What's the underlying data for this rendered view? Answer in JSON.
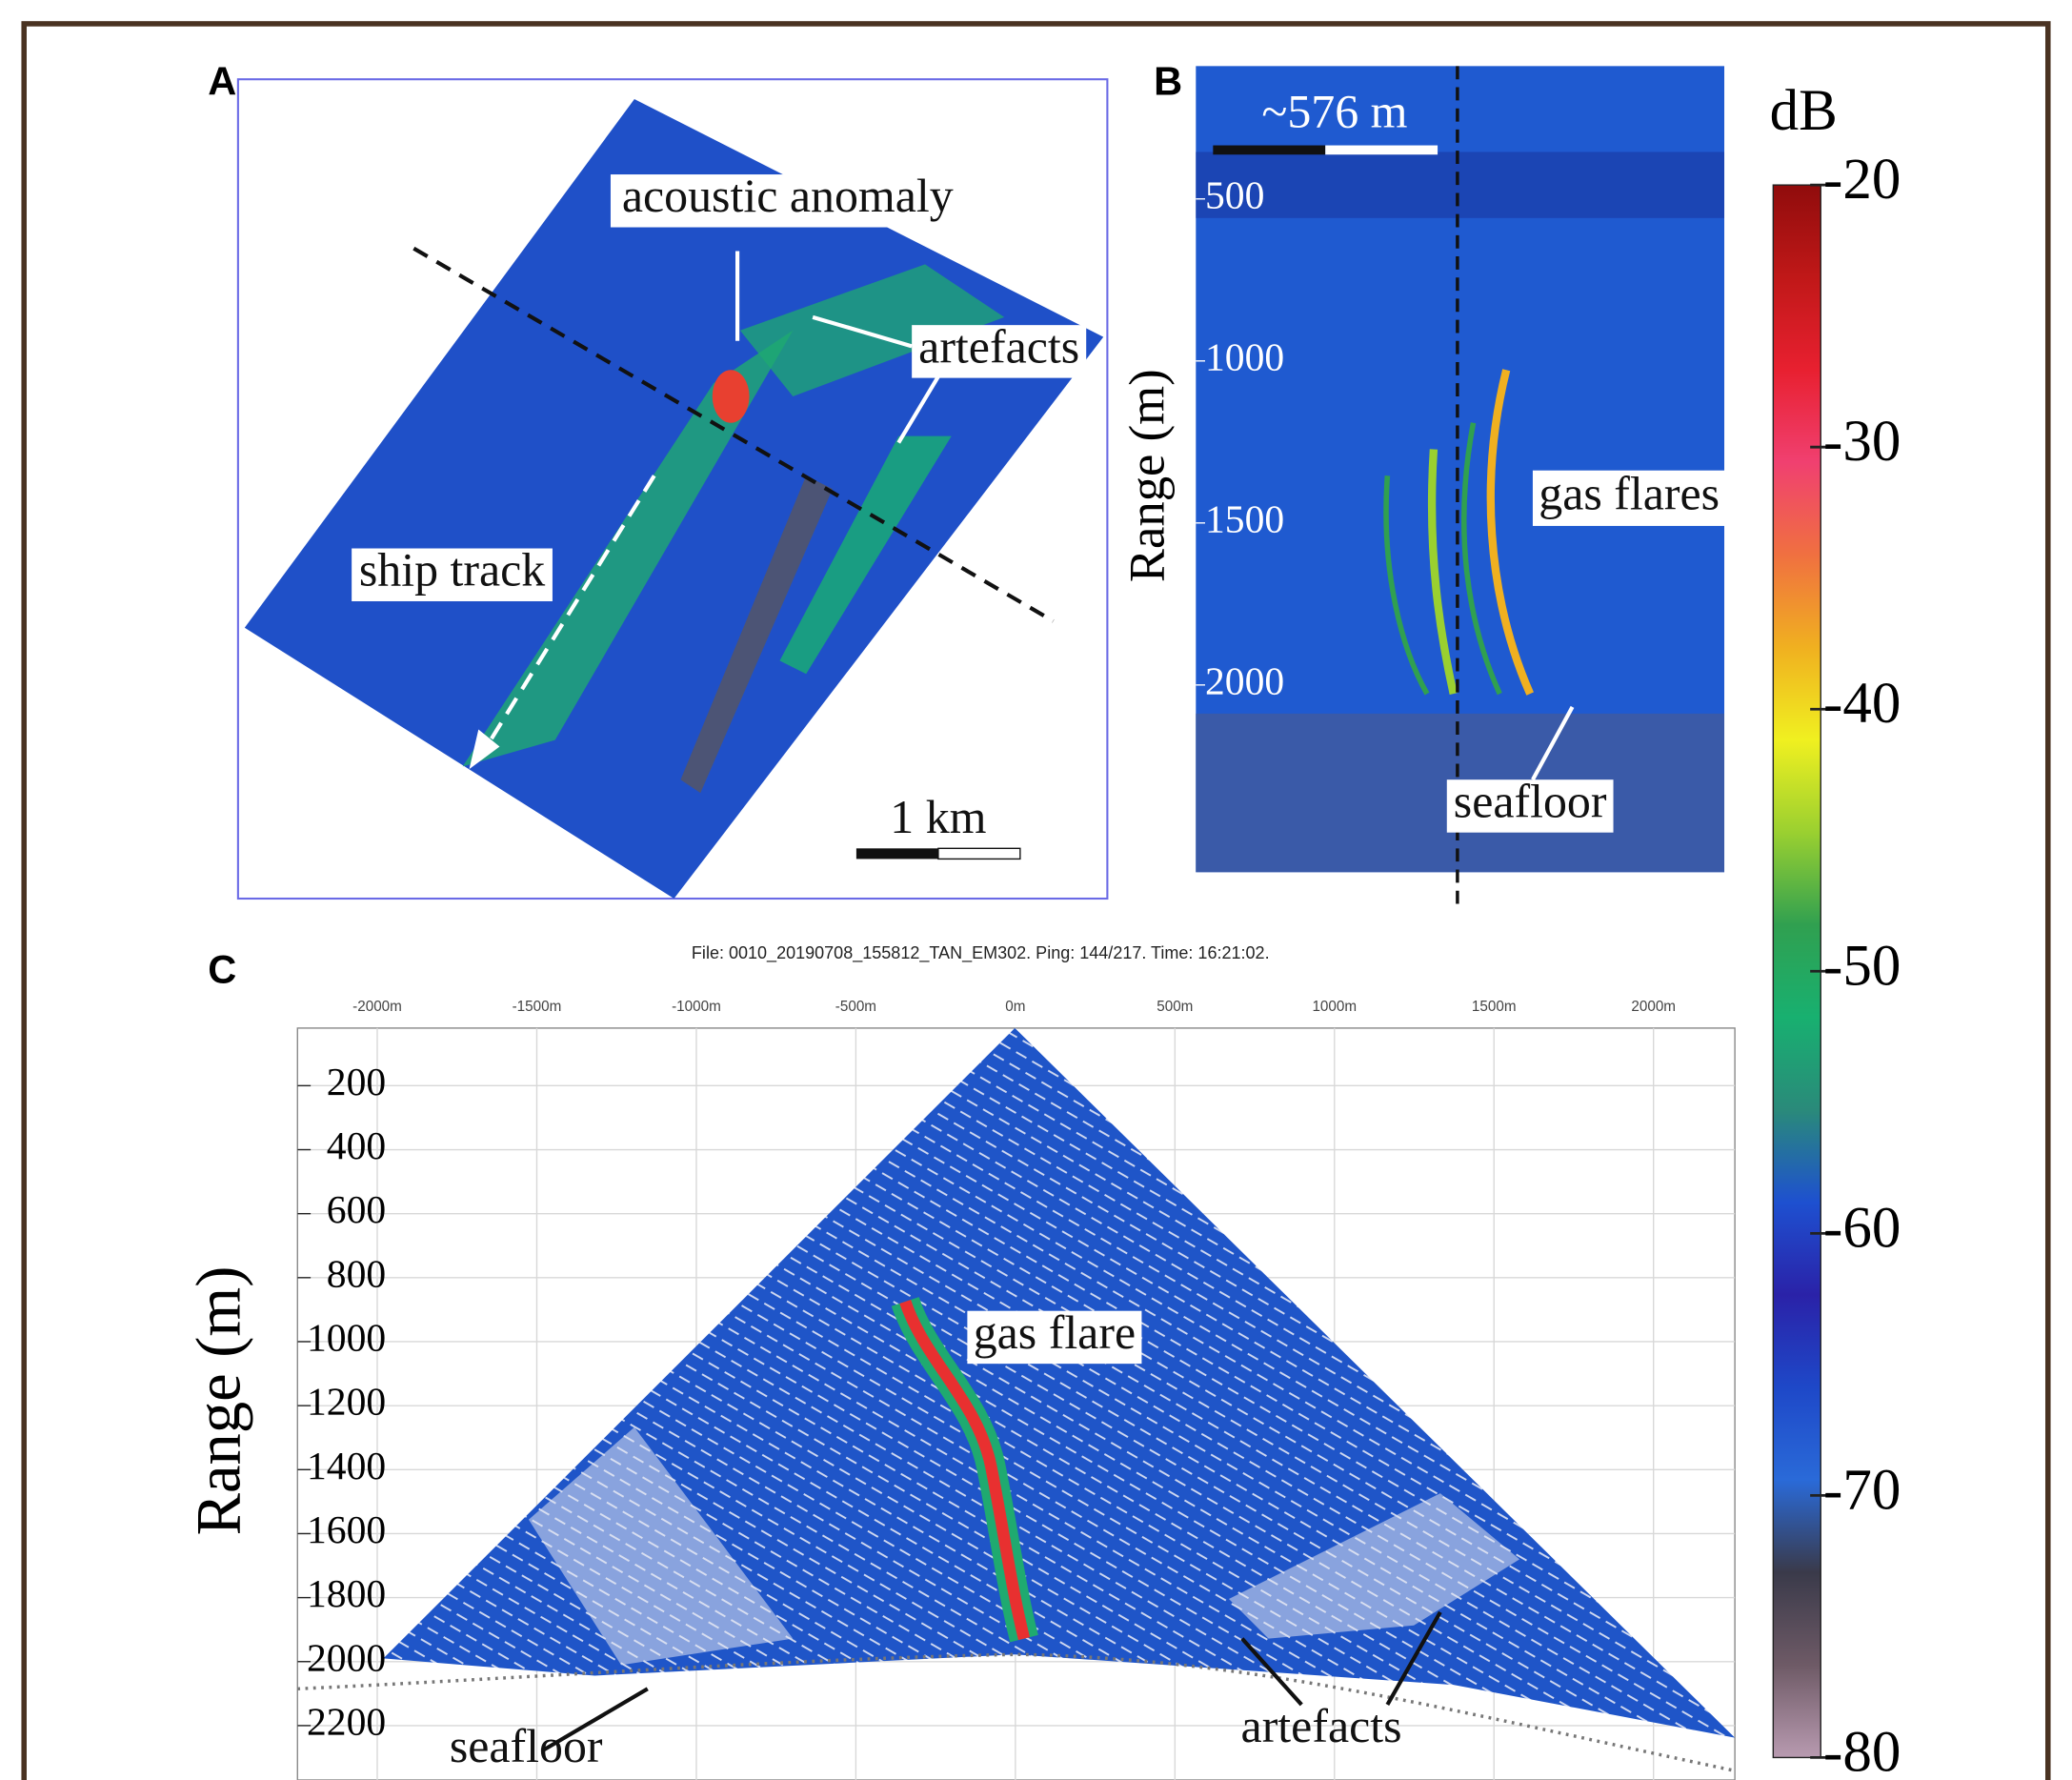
{
  "chart_data": [
    {
      "type": "map",
      "label": "A",
      "annotations": [
        "acoustic anomaly",
        "artefacts",
        "ship track"
      ],
      "scale_bar": "1 km"
    },
    {
      "type": "echogram",
      "label": "B",
      "ylabel": "Range (m)",
      "ylim": [
        90,
        2700
      ],
      "yticks": [
        500,
        1000,
        1500,
        2000
      ],
      "annotations": [
        "gas flares",
        "seafloor"
      ],
      "scale_bar": "~576 m"
    },
    {
      "type": "water-column",
      "label": "C",
      "title": "File: 0010_20190708_155812_TAN_EM302. Ping: 144/217. Time: 16:21:02.",
      "ylabel": "Range (m)",
      "xlim": [
        -2250,
        2255
      ],
      "xticks": [
        {
          "value": -2000,
          "label": "-2000m"
        },
        {
          "value": -1500,
          "label": "-1500m"
        },
        {
          "value": -1000,
          "label": "-1000m"
        },
        {
          "value": -500,
          "label": "-500m"
        },
        {
          "value": 0,
          "label": "0m"
        },
        {
          "value": 500,
          "label": "500m"
        },
        {
          "value": 1000,
          "label": "1000m"
        },
        {
          "value": 1500,
          "label": "1500m"
        },
        {
          "value": 2000,
          "label": "2000m"
        }
      ],
      "ylim": [
        20,
        2370
      ],
      "y_inverted": true,
      "yticks": [
        200,
        400,
        600,
        800,
        1000,
        1200,
        1400,
        1600,
        1800,
        2000,
        2200
      ],
      "grid": true,
      "annotations": [
        "gas flare",
        "seafloor",
        "artefacts"
      ]
    },
    {
      "type": "colorbar",
      "title": "dB",
      "ylim": [
        -80,
        -20
      ],
      "yticks": [
        -20,
        -30,
        -40,
        -50,
        -60,
        -70,
        -80
      ],
      "colors": [
        "#b89ab0",
        "#6e5a66",
        "#3a3a4a",
        "#2a6ad8",
        "#1e48c8",
        "#2a22a8",
        "#1e50d0",
        "#2a8a7a",
        "#18b070",
        "#30a050",
        "#9ad030",
        "#f0f020",
        "#f0b020",
        "#f07040",
        "#f04070",
        "#e82030",
        "#c01818",
        "#900c0c"
      ]
    }
  ]
}
